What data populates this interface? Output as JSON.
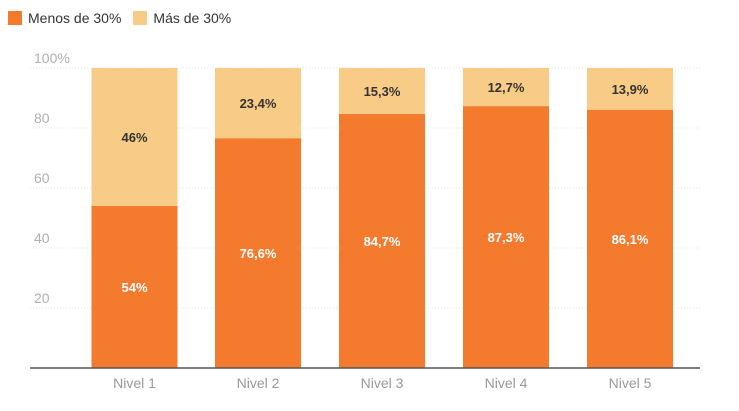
{
  "chart_data": {
    "type": "bar",
    "stacked": true,
    "categories": [
      "Nivel 1",
      "Nivel 2",
      "Nivel 3",
      "Nivel 4",
      "Nivel 5"
    ],
    "series": [
      {
        "name": "Menos de 30%",
        "color": "#F47A2E",
        "values": [
          54,
          76.6,
          84.7,
          87.3,
          86.1
        ],
        "labels": [
          "54%",
          "76,6%",
          "84,7%",
          "87,3%",
          "86,1%"
        ],
        "label_color": "#ffffff"
      },
      {
        "name": "Más de 30%",
        "color": "#F8CB86",
        "values": [
          46,
          23.4,
          15.3,
          12.7,
          13.9
        ],
        "labels": [
          "46%",
          "23,4%",
          "15,3%",
          "12,7%",
          "13,9%"
        ],
        "label_color": "#333333"
      }
    ],
    "ylim": [
      0,
      100
    ],
    "yticks": [
      "",
      "20",
      "40",
      "60",
      "80",
      "100%"
    ],
    "grid": true,
    "legend_position": "top-left"
  }
}
